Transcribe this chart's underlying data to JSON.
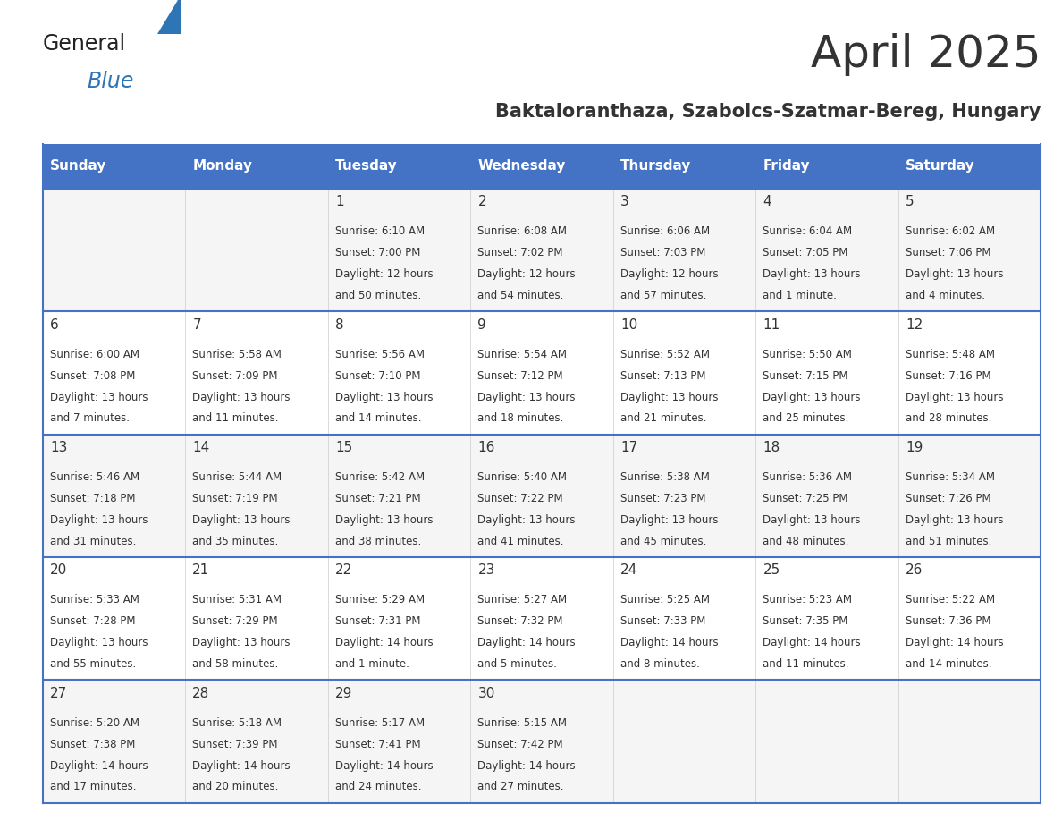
{
  "title": "April 2025",
  "subtitle": "Baktaloranthaza, Szabolcs-Szatmar-Bereg, Hungary",
  "days_of_week": [
    "Sunday",
    "Monday",
    "Tuesday",
    "Wednesday",
    "Thursday",
    "Friday",
    "Saturday"
  ],
  "header_bg": "#4472C4",
  "header_text": "#FFFFFF",
  "cell_border": "#4472C4",
  "day_number_color": "#333333",
  "cell_text_color": "#333333",
  "title_color": "#333333",
  "subtitle_color": "#333333",
  "logo_general_color": "#222222",
  "logo_blue_color": "#2E75B6",
  "logo_triangle_color": "#2E75B6",
  "weeks": [
    {
      "days": [
        {
          "date": null,
          "sunrise": null,
          "sunset": null,
          "daylight_line1": null,
          "daylight_line2": null
        },
        {
          "date": null,
          "sunrise": null,
          "sunset": null,
          "daylight_line1": null,
          "daylight_line2": null
        },
        {
          "date": 1,
          "sunrise": "6:10 AM",
          "sunset": "7:00 PM",
          "daylight_line1": "12 hours",
          "daylight_line2": "and 50 minutes."
        },
        {
          "date": 2,
          "sunrise": "6:08 AM",
          "sunset": "7:02 PM",
          "daylight_line1": "12 hours",
          "daylight_line2": "and 54 minutes."
        },
        {
          "date": 3,
          "sunrise": "6:06 AM",
          "sunset": "7:03 PM",
          "daylight_line1": "12 hours",
          "daylight_line2": "and 57 minutes."
        },
        {
          "date": 4,
          "sunrise": "6:04 AM",
          "sunset": "7:05 PM",
          "daylight_line1": "13 hours",
          "daylight_line2": "and 1 minute."
        },
        {
          "date": 5,
          "sunrise": "6:02 AM",
          "sunset": "7:06 PM",
          "daylight_line1": "13 hours",
          "daylight_line2": "and 4 minutes."
        }
      ]
    },
    {
      "days": [
        {
          "date": 6,
          "sunrise": "6:00 AM",
          "sunset": "7:08 PM",
          "daylight_line1": "13 hours",
          "daylight_line2": "and 7 minutes."
        },
        {
          "date": 7,
          "sunrise": "5:58 AM",
          "sunset": "7:09 PM",
          "daylight_line1": "13 hours",
          "daylight_line2": "and 11 minutes."
        },
        {
          "date": 8,
          "sunrise": "5:56 AM",
          "sunset": "7:10 PM",
          "daylight_line1": "13 hours",
          "daylight_line2": "and 14 minutes."
        },
        {
          "date": 9,
          "sunrise": "5:54 AM",
          "sunset": "7:12 PM",
          "daylight_line1": "13 hours",
          "daylight_line2": "and 18 minutes."
        },
        {
          "date": 10,
          "sunrise": "5:52 AM",
          "sunset": "7:13 PM",
          "daylight_line1": "13 hours",
          "daylight_line2": "and 21 minutes."
        },
        {
          "date": 11,
          "sunrise": "5:50 AM",
          "sunset": "7:15 PM",
          "daylight_line1": "13 hours",
          "daylight_line2": "and 25 minutes."
        },
        {
          "date": 12,
          "sunrise": "5:48 AM",
          "sunset": "7:16 PM",
          "daylight_line1": "13 hours",
          "daylight_line2": "and 28 minutes."
        }
      ]
    },
    {
      "days": [
        {
          "date": 13,
          "sunrise": "5:46 AM",
          "sunset": "7:18 PM",
          "daylight_line1": "13 hours",
          "daylight_line2": "and 31 minutes."
        },
        {
          "date": 14,
          "sunrise": "5:44 AM",
          "sunset": "7:19 PM",
          "daylight_line1": "13 hours",
          "daylight_line2": "and 35 minutes."
        },
        {
          "date": 15,
          "sunrise": "5:42 AM",
          "sunset": "7:21 PM",
          "daylight_line1": "13 hours",
          "daylight_line2": "and 38 minutes."
        },
        {
          "date": 16,
          "sunrise": "5:40 AM",
          "sunset": "7:22 PM",
          "daylight_line1": "13 hours",
          "daylight_line2": "and 41 minutes."
        },
        {
          "date": 17,
          "sunrise": "5:38 AM",
          "sunset": "7:23 PM",
          "daylight_line1": "13 hours",
          "daylight_line2": "and 45 minutes."
        },
        {
          "date": 18,
          "sunrise": "5:36 AM",
          "sunset": "7:25 PM",
          "daylight_line1": "13 hours",
          "daylight_line2": "and 48 minutes."
        },
        {
          "date": 19,
          "sunrise": "5:34 AM",
          "sunset": "7:26 PM",
          "daylight_line1": "13 hours",
          "daylight_line2": "and 51 minutes."
        }
      ]
    },
    {
      "days": [
        {
          "date": 20,
          "sunrise": "5:33 AM",
          "sunset": "7:28 PM",
          "daylight_line1": "13 hours",
          "daylight_line2": "and 55 minutes."
        },
        {
          "date": 21,
          "sunrise": "5:31 AM",
          "sunset": "7:29 PM",
          "daylight_line1": "13 hours",
          "daylight_line2": "and 58 minutes."
        },
        {
          "date": 22,
          "sunrise": "5:29 AM",
          "sunset": "7:31 PM",
          "daylight_line1": "14 hours",
          "daylight_line2": "and 1 minute."
        },
        {
          "date": 23,
          "sunrise": "5:27 AM",
          "sunset": "7:32 PM",
          "daylight_line1": "14 hours",
          "daylight_line2": "and 5 minutes."
        },
        {
          "date": 24,
          "sunrise": "5:25 AM",
          "sunset": "7:33 PM",
          "daylight_line1": "14 hours",
          "daylight_line2": "and 8 minutes."
        },
        {
          "date": 25,
          "sunrise": "5:23 AM",
          "sunset": "7:35 PM",
          "daylight_line1": "14 hours",
          "daylight_line2": "and 11 minutes."
        },
        {
          "date": 26,
          "sunrise": "5:22 AM",
          "sunset": "7:36 PM",
          "daylight_line1": "14 hours",
          "daylight_line2": "and 14 minutes."
        }
      ]
    },
    {
      "days": [
        {
          "date": 27,
          "sunrise": "5:20 AM",
          "sunset": "7:38 PM",
          "daylight_line1": "14 hours",
          "daylight_line2": "and 17 minutes."
        },
        {
          "date": 28,
          "sunrise": "5:18 AM",
          "sunset": "7:39 PM",
          "daylight_line1": "14 hours",
          "daylight_line2": "and 20 minutes."
        },
        {
          "date": 29,
          "sunrise": "5:17 AM",
          "sunset": "7:41 PM",
          "daylight_line1": "14 hours",
          "daylight_line2": "and 24 minutes."
        },
        {
          "date": 30,
          "sunrise": "5:15 AM",
          "sunset": "7:42 PM",
          "daylight_line1": "14 hours",
          "daylight_line2": "and 27 minutes."
        },
        {
          "date": null,
          "sunrise": null,
          "sunset": null,
          "daylight_line1": null,
          "daylight_line2": null
        },
        {
          "date": null,
          "sunrise": null,
          "sunset": null,
          "daylight_line1": null,
          "daylight_line2": null
        },
        {
          "date": null,
          "sunrise": null,
          "sunset": null,
          "daylight_line1": null,
          "daylight_line2": null
        }
      ]
    }
  ]
}
